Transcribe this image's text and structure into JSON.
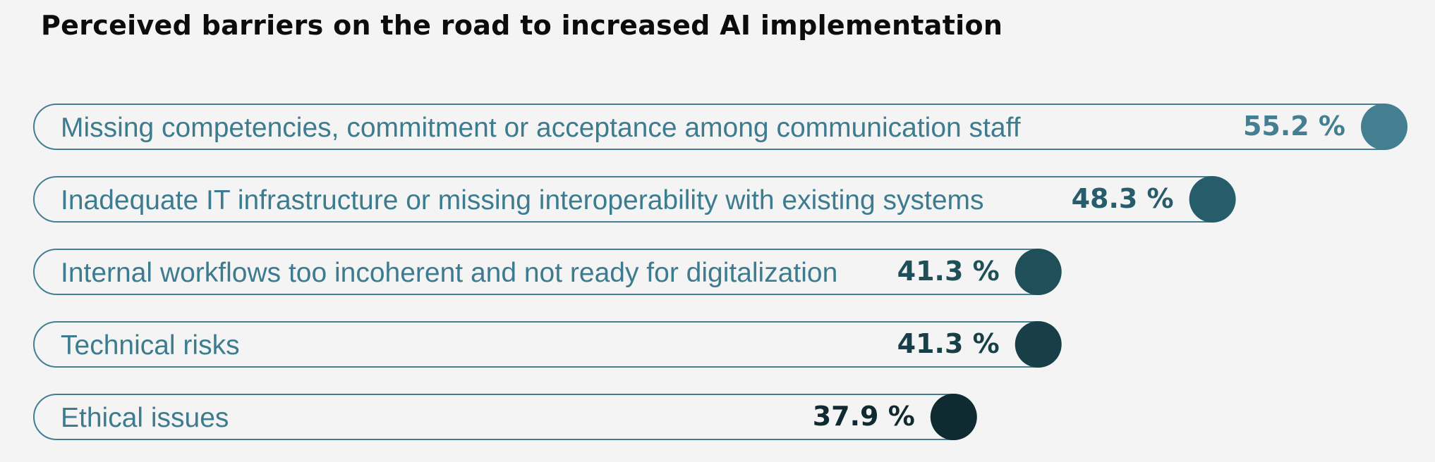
{
  "chart_data": {
    "type": "bar",
    "orientation": "horizontal",
    "title": "Perceived barriers on the road to increased AI implementation",
    "categories": [
      "Missing competencies, commitment or acceptance among communication staff",
      "Inadequate IT infrastructure or missing interoperability with existing systems",
      "Internal workflows too incoherent and not ready for digitalization",
      "Technical risks",
      "Ethical issues"
    ],
    "values": [
      55.2,
      48.3,
      41.3,
      41.3,
      37.9
    ],
    "value_labels": [
      "55.2 %",
      "48.3 %",
      "41.3 %",
      "41.3 %",
      "37.9 %"
    ],
    "unit": "%",
    "xlim": [
      0,
      55.2
    ],
    "colors": [
      "#447f91",
      "#275c6b",
      "#1f4f58",
      "#183e48",
      "#0f2a31"
    ],
    "outline_color": "#447f91",
    "label_color": "#3d7b8f",
    "xlabel": "",
    "ylabel": "",
    "grid": false
  }
}
